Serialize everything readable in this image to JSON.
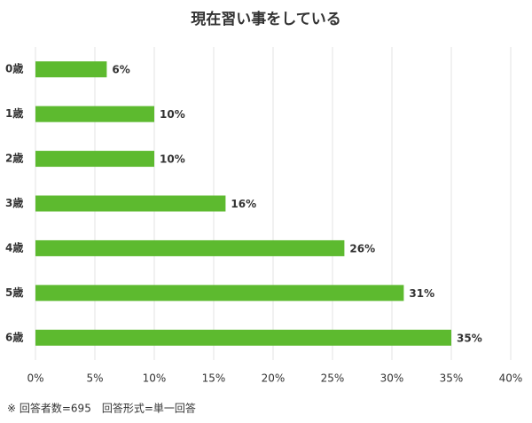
{
  "chart_data": {
    "type": "hbar",
    "title": "現在習い事をしている",
    "categories": [
      "0歳",
      "1歳",
      "2歳",
      "3歳",
      "4歳",
      "5歳",
      "6歳"
    ],
    "values": [
      6,
      10,
      10,
      16,
      26,
      31,
      35
    ],
    "value_labels": [
      "6%",
      "10%",
      "10%",
      "16%",
      "26%",
      "31%",
      "35%"
    ],
    "color": "#5dba2f",
    "xlim": [
      0,
      40
    ],
    "xticks": [
      {
        "value": 0,
        "label": "0%"
      },
      {
        "value": 5,
        "label": "5%"
      },
      {
        "value": 10,
        "label": "10%"
      },
      {
        "value": 15,
        "label": "15%"
      },
      {
        "value": 20,
        "label": "20%"
      },
      {
        "value": 25,
        "label": "25%"
      },
      {
        "value": 30,
        "label": "30%"
      },
      {
        "value": 35,
        "label": "35%"
      },
      {
        "value": 40,
        "label": "40%"
      }
    ],
    "grid": true,
    "note": "※ 回答者数=695　回答形式=単一回答"
  }
}
